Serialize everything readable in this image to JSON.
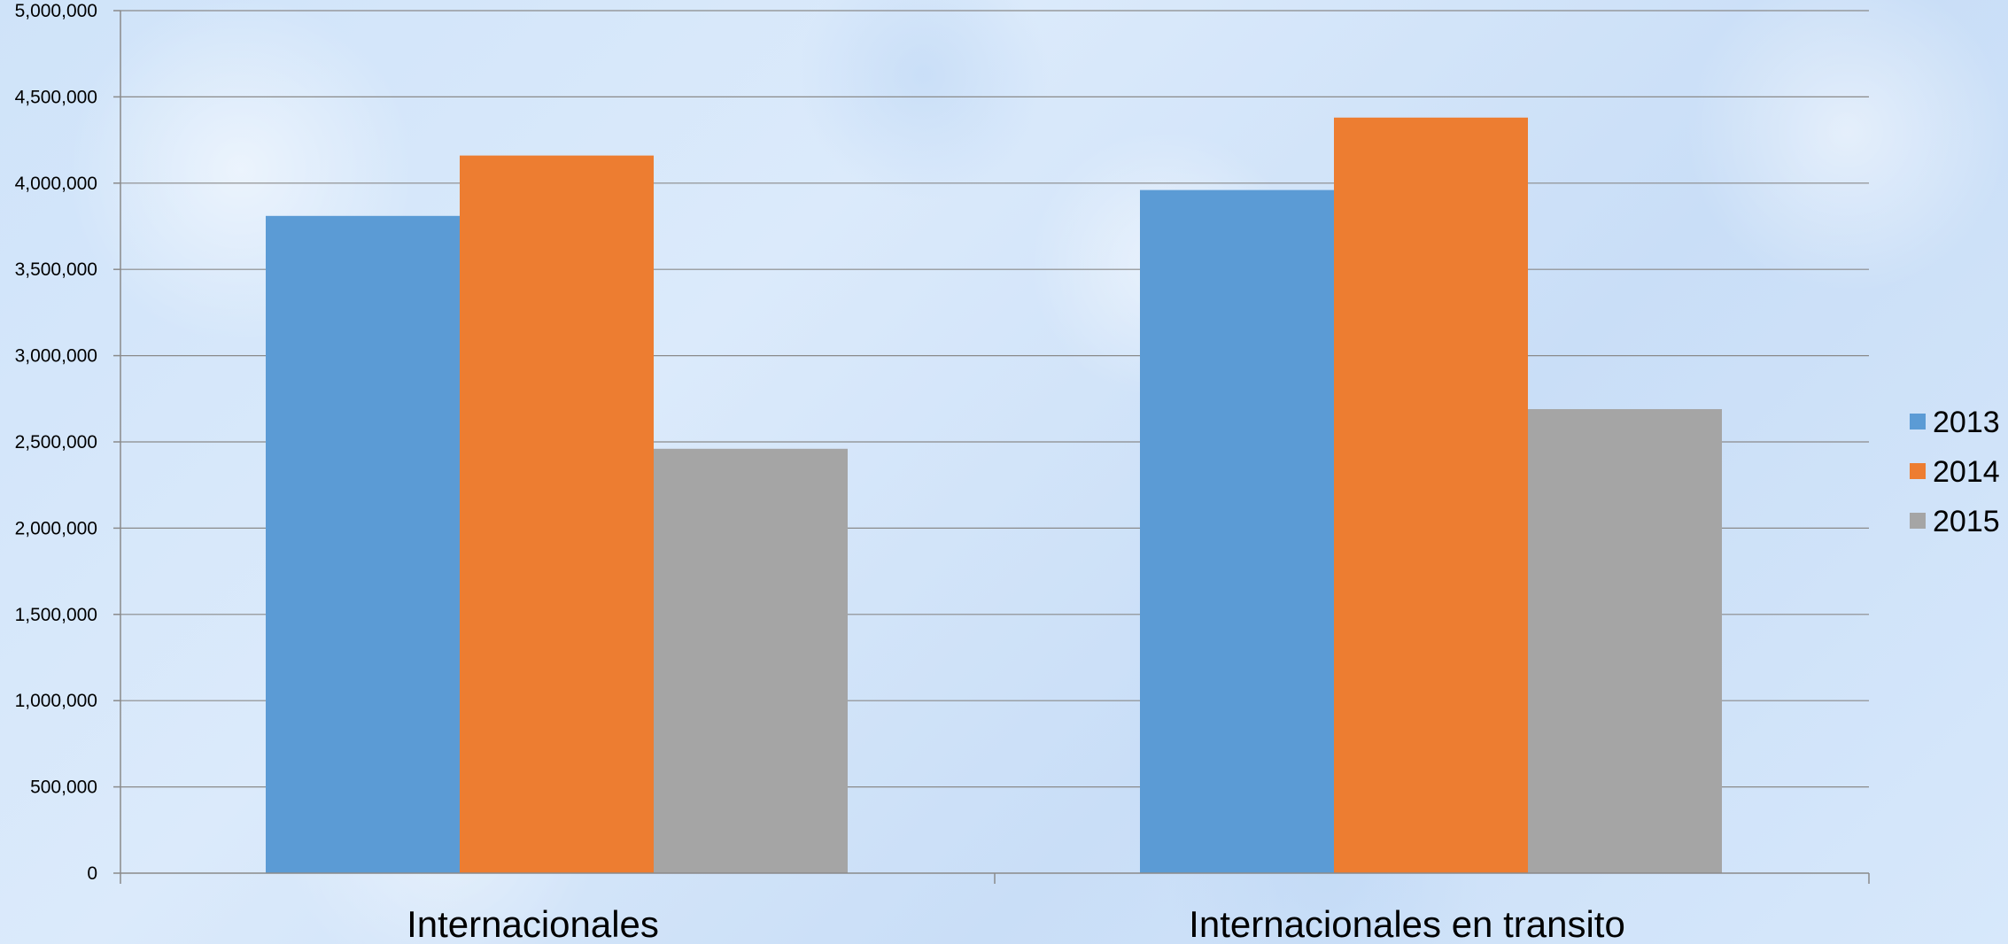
{
  "chart_data": {
    "type": "bar",
    "categories": [
      "Internacionales",
      "Internacionales en transito"
    ],
    "series": [
      {
        "name": "2013",
        "color": "#5b9bd5",
        "values": [
          3810000,
          3960000
        ]
      },
      {
        "name": "2014",
        "color": "#ed7d31",
        "values": [
          4160000,
          4380000
        ]
      },
      {
        "name": "2015",
        "color": "#a5a5a5",
        "values": [
          2460000,
          2690000
        ]
      }
    ],
    "ylim": [
      0,
      5000000
    ],
    "yticks": [
      0,
      500000,
      1000000,
      1500000,
      2000000,
      2500000,
      3000000,
      3500000,
      4000000,
      4500000,
      5000000
    ],
    "ytick_labels": [
      "0",
      "500,000",
      "1,000,000",
      "1,500,000",
      "2,000,000",
      "2,500,000",
      "3,000,000",
      "3,500,000",
      "4,000,000",
      "4,500,000",
      "5,000,000"
    ],
    "grid": true,
    "legend_position": "right"
  }
}
